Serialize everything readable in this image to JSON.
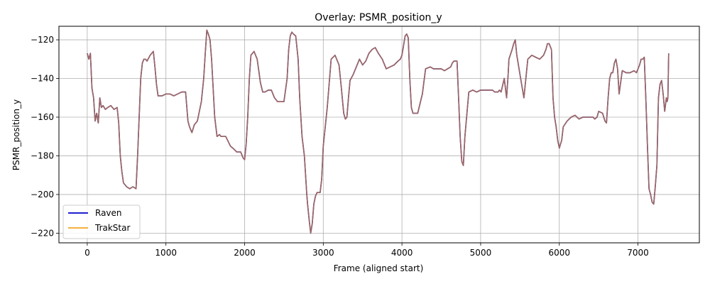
{
  "chart_data": {
    "type": "line",
    "title": "Overlay: PSMR_position_y",
    "xlabel": "Frame (aligned start)",
    "ylabel": "PSMR_position_y",
    "xlim": [
      -360,
      7780
    ],
    "ylim": [
      -225,
      -113
    ],
    "xticks": [
      0,
      1000,
      2000,
      3000,
      4000,
      5000,
      6000,
      7000
    ],
    "yticks": [
      -220,
      -200,
      -180,
      -160,
      -140,
      -120
    ],
    "grid": true,
    "legend_position": "lower-left",
    "series": [
      {
        "name": "Raven",
        "color": "#0000cc",
        "x": [
          0,
          20,
          40,
          60,
          80,
          100,
          120,
          140,
          160,
          180,
          200,
          230,
          260,
          300,
          340,
          380,
          400,
          420,
          440,
          460,
          480,
          500,
          540,
          580,
          620,
          640,
          660,
          680,
          700,
          720,
          740,
          760,
          800,
          840,
          860,
          880,
          900,
          950,
          1000,
          1050,
          1100,
          1150,
          1200,
          1250,
          1280,
          1300,
          1330,
          1360,
          1400,
          1450,
          1480,
          1500,
          1520,
          1540,
          1560,
          1580,
          1600,
          1620,
          1650,
          1680,
          1700,
          1760,
          1820,
          1850,
          1900,
          1950,
          1980,
          2000,
          2020,
          2040,
          2060,
          2080,
          2120,
          2160,
          2180,
          2200,
          2230,
          2260,
          2300,
          2340,
          2380,
          2420,
          2460,
          2500,
          2540,
          2560,
          2580,
          2600,
          2620,
          2650,
          2680,
          2700,
          2730,
          2760,
          2790,
          2800,
          2820,
          2840,
          2860,
          2880,
          2900,
          2920,
          2940,
          2960,
          2980,
          3000,
          3050,
          3100,
          3150,
          3200,
          3230,
          3260,
          3280,
          3300,
          3320,
          3340,
          3380,
          3420,
          3460,
          3500,
          3540,
          3580,
          3620,
          3660,
          3700,
          3750,
          3800,
          3850,
          3900,
          3950,
          3980,
          4000,
          4020,
          4040,
          4060,
          4080,
          4100,
          4120,
          4140,
          4200,
          4260,
          4300,
          4360,
          4400,
          4420,
          4460,
          4500,
          4540,
          4580,
          4620,
          4640,
          4660,
          4680,
          4700,
          4720,
          4740,
          4760,
          4780,
          4800,
          4850,
          4900,
          4950,
          5000,
          5050,
          5100,
          5150,
          5180,
          5200,
          5220,
          5240,
          5260,
          5300,
          5330,
          5350,
          5360,
          5400,
          5420,
          5440,
          5460,
          5500,
          5550,
          5600,
          5650,
          5700,
          5750,
          5800,
          5830,
          5850,
          5870,
          5880,
          5900,
          5920,
          5940,
          5960,
          5980,
          6000,
          6030,
          6050,
          6100,
          6150,
          6200,
          6250,
          6300,
          6350,
          6400,
          6430,
          6450,
          6480,
          6500,
          6550,
          6580,
          6600,
          6620,
          6640,
          6660,
          6680,
          6700,
          6720,
          6740,
          6760,
          6800,
          6850,
          6900,
          6950,
          6980,
          7000,
          7020,
          7040,
          7060,
          7080,
          7100,
          7120,
          7140,
          7160,
          7180,
          7200,
          7220,
          7240,
          7260,
          7280,
          7300,
          7320,
          7340,
          7360,
          7370,
          7380,
          7390
        ],
        "y": [
          -127,
          -130,
          -127,
          -145,
          -150,
          -162,
          -158,
          -163,
          -150,
          -155,
          -154,
          -156,
          -155,
          -154,
          -156,
          -155,
          -163,
          -180,
          -188,
          -194,
          -195,
          -196,
          -197,
          -196,
          -197,
          -180,
          -160,
          -140,
          -132,
          -130,
          -130,
          -131,
          -128,
          -126,
          -134,
          -143,
          -149,
          -149,
          -148,
          -148,
          -149,
          -148,
          -147,
          -147,
          -162,
          -165,
          -168,
          -164,
          -162,
          -152,
          -140,
          -127,
          -115,
          -117,
          -120,
          -130,
          -145,
          -160,
          -170,
          -169,
          -170,
          -170,
          -175,
          -176,
          -178,
          -178,
          -181,
          -182,
          -174,
          -160,
          -140,
          -128,
          -126,
          -130,
          -136,
          -142,
          -147,
          -147,
          -146,
          -146,
          -150,
          -152,
          -152,
          -152,
          -140,
          -125,
          -118,
          -116,
          -117,
          -118,
          -130,
          -150,
          -170,
          -180,
          -200,
          -205,
          -213,
          -220,
          -215,
          -205,
          -201,
          -199,
          -199,
          -199,
          -192,
          -175,
          -155,
          -130,
          -128,
          -133,
          -145,
          -158,
          -161,
          -160,
          -150,
          -141,
          -138,
          -134,
          -130,
          -133,
          -131,
          -127,
          -125,
          -124,
          -127,
          -130,
          -135,
          -134,
          -133,
          -131,
          -130,
          -128,
          -123,
          -118,
          -117,
          -119,
          -140,
          -155,
          -158,
          -158,
          -148,
          -135,
          -134,
          -135,
          -135,
          -135,
          -135,
          -136,
          -135,
          -134,
          -132,
          -131,
          -131,
          -131,
          -150,
          -170,
          -183,
          -185,
          -170,
          -147,
          -146,
          -147,
          -146,
          -146,
          -146,
          -146,
          -147,
          -147,
          -147,
          -146,
          -147,
          -140,
          -150,
          -138,
          -130,
          -125,
          -122,
          -120,
          -128,
          -138,
          -150,
          -130,
          -128,
          -129,
          -130,
          -128,
          -125,
          -122,
          -122,
          -123,
          -125,
          -150,
          -160,
          -165,
          -172,
          -176,
          -172,
          -165,
          -162,
          -160,
          -159,
          -161,
          -160,
          -160,
          -160,
          -160,
          -161,
          -160,
          -157,
          -158,
          -162,
          -163,
          -150,
          -140,
          -137,
          -137,
          -132,
          -130,
          -135,
          -148,
          -136,
          -137,
          -137,
          -136,
          -137,
          -135,
          -133,
          -130,
          -130,
          -129,
          -150,
          -175,
          -197,
          -200,
          -204,
          -205,
          -196,
          -185,
          -150,
          -143,
          -141,
          -148,
          -157,
          -150,
          -152,
          -150,
          -127
        ]
      },
      {
        "name": "TrakStar",
        "color": "#f5a623",
        "x": [
          0,
          20,
          40,
          60,
          80,
          100,
          120,
          140,
          160,
          180,
          200,
          230,
          260,
          300,
          340,
          380,
          400,
          420,
          440,
          460,
          480,
          500,
          540,
          580,
          620,
          640,
          660,
          680,
          700,
          720,
          740,
          760,
          800,
          840,
          860,
          880,
          900,
          950,
          1000,
          1050,
          1100,
          1150,
          1200,
          1250,
          1280,
          1300,
          1330,
          1360,
          1400,
          1450,
          1480,
          1500,
          1520,
          1540,
          1560,
          1580,
          1600,
          1620,
          1650,
          1680,
          1700,
          1760,
          1820,
          1850,
          1900,
          1950,
          1980,
          2000,
          2020,
          2040,
          2060,
          2080,
          2120,
          2160,
          2180,
          2200,
          2230,
          2260,
          2300,
          2340,
          2380,
          2420,
          2460,
          2500,
          2540,
          2560,
          2580,
          2600,
          2620,
          2650,
          2680,
          2700,
          2730,
          2760,
          2790,
          2800,
          2820,
          2840,
          2860,
          2880,
          2900,
          2920,
          2940,
          2960,
          2980,
          3000,
          3050,
          3100,
          3150,
          3200,
          3230,
          3260,
          3280,
          3300,
          3320,
          3340,
          3380,
          3420,
          3460,
          3500,
          3540,
          3580,
          3620,
          3660,
          3700,
          3750,
          3800,
          3850,
          3900,
          3950,
          3980,
          4000,
          4020,
          4040,
          4060,
          4080,
          4100,
          4120,
          4140,
          4200,
          4260,
          4300,
          4360,
          4400,
          4420,
          4460,
          4500,
          4540,
          4580,
          4620,
          4640,
          4660,
          4680,
          4700,
          4720,
          4740,
          4760,
          4780,
          4800,
          4850,
          4900,
          4950,
          5000,
          5050,
          5100,
          5150,
          5180,
          5200,
          5220,
          5240,
          5260,
          5300,
          5330,
          5350,
          5360,
          5400,
          5420,
          5440,
          5460,
          5500,
          5550,
          5600,
          5650,
          5700,
          5750,
          5800,
          5830,
          5850,
          5870,
          5880,
          5900,
          5920,
          5940,
          5960,
          5980,
          6000,
          6030,
          6050,
          6100,
          6150,
          6200,
          6250,
          6300,
          6350,
          6400,
          6430,
          6450,
          6480,
          6500,
          6550,
          6580,
          6600,
          6620,
          6640,
          6660,
          6680,
          6700,
          6720,
          6740,
          6760,
          6800,
          6850,
          6900,
          6950,
          6980,
          7000,
          7020,
          7040,
          7060,
          7080,
          7100,
          7120,
          7140,
          7160,
          7180,
          7200,
          7220,
          7240,
          7260,
          7280,
          7300,
          7320,
          7340,
          7360,
          7370,
          7380,
          7390
        ],
        "y": [
          -127,
          -130,
          -127,
          -145,
          -150,
          -162,
          -158,
          -163,
          -150,
          -155,
          -154,
          -156,
          -155,
          -154,
          -156,
          -155,
          -163,
          -180,
          -188,
          -194,
          -195,
          -196,
          -197,
          -196,
          -197,
          -180,
          -160,
          -140,
          -132,
          -130,
          -130,
          -131,
          -128,
          -126,
          -134,
          -143,
          -149,
          -149,
          -148,
          -148,
          -149,
          -148,
          -147,
          -147,
          -162,
          -165,
          -168,
          -164,
          -162,
          -152,
          -140,
          -127,
          -115,
          -117,
          -120,
          -130,
          -145,
          -160,
          -170,
          -169,
          -170,
          -170,
          -175,
          -176,
          -178,
          -178,
          -181,
          -182,
          -174,
          -160,
          -140,
          -128,
          -126,
          -130,
          -136,
          -142,
          -147,
          -147,
          -146,
          -146,
          -150,
          -152,
          -152,
          -152,
          -140,
          -125,
          -118,
          -116,
          -117,
          -118,
          -130,
          -150,
          -170,
          -180,
          -200,
          -205,
          -213,
          -220,
          -215,
          -205,
          -201,
          -199,
          -199,
          -199,
          -192,
          -175,
          -155,
          -130,
          -128,
          -133,
          -145,
          -158,
          -161,
          -160,
          -150,
          -141,
          -138,
          -134,
          -130,
          -133,
          -131,
          -127,
          -125,
          -124,
          -127,
          -130,
          -135,
          -134,
          -133,
          -131,
          -130,
          -128,
          -123,
          -118,
          -117,
          -119,
          -140,
          -155,
          -158,
          -158,
          -148,
          -135,
          -134,
          -135,
          -135,
          -135,
          -135,
          -136,
          -135,
          -134,
          -132,
          -131,
          -131,
          -131,
          -150,
          -170,
          -183,
          -185,
          -170,
          -147,
          -146,
          -147,
          -146,
          -146,
          -146,
          -146,
          -147,
          -147,
          -147,
          -146,
          -147,
          -140,
          -150,
          -138,
          -130,
          -125,
          -122,
          -120,
          -128,
          -138,
          -150,
          -130,
          -128,
          -129,
          -130,
          -128,
          -125,
          -122,
          -122,
          -123,
          -125,
          -150,
          -160,
          -165,
          -172,
          -176,
          -172,
          -165,
          -162,
          -160,
          -159,
          -161,
          -160,
          -160,
          -160,
          -160,
          -161,
          -160,
          -157,
          -158,
          -162,
          -163,
          -150,
          -140,
          -137,
          -137,
          -132,
          -130,
          -135,
          -148,
          -136,
          -137,
          -137,
          -136,
          -137,
          -135,
          -133,
          -130,
          -130,
          -129,
          -150,
          -175,
          -197,
          -200,
          -204,
          -205,
          -196,
          -185,
          -150,
          -143,
          -141,
          -148,
          -157,
          -150,
          -152,
          -150,
          -127
        ]
      }
    ],
    "overlay_color": "#b8784c"
  }
}
